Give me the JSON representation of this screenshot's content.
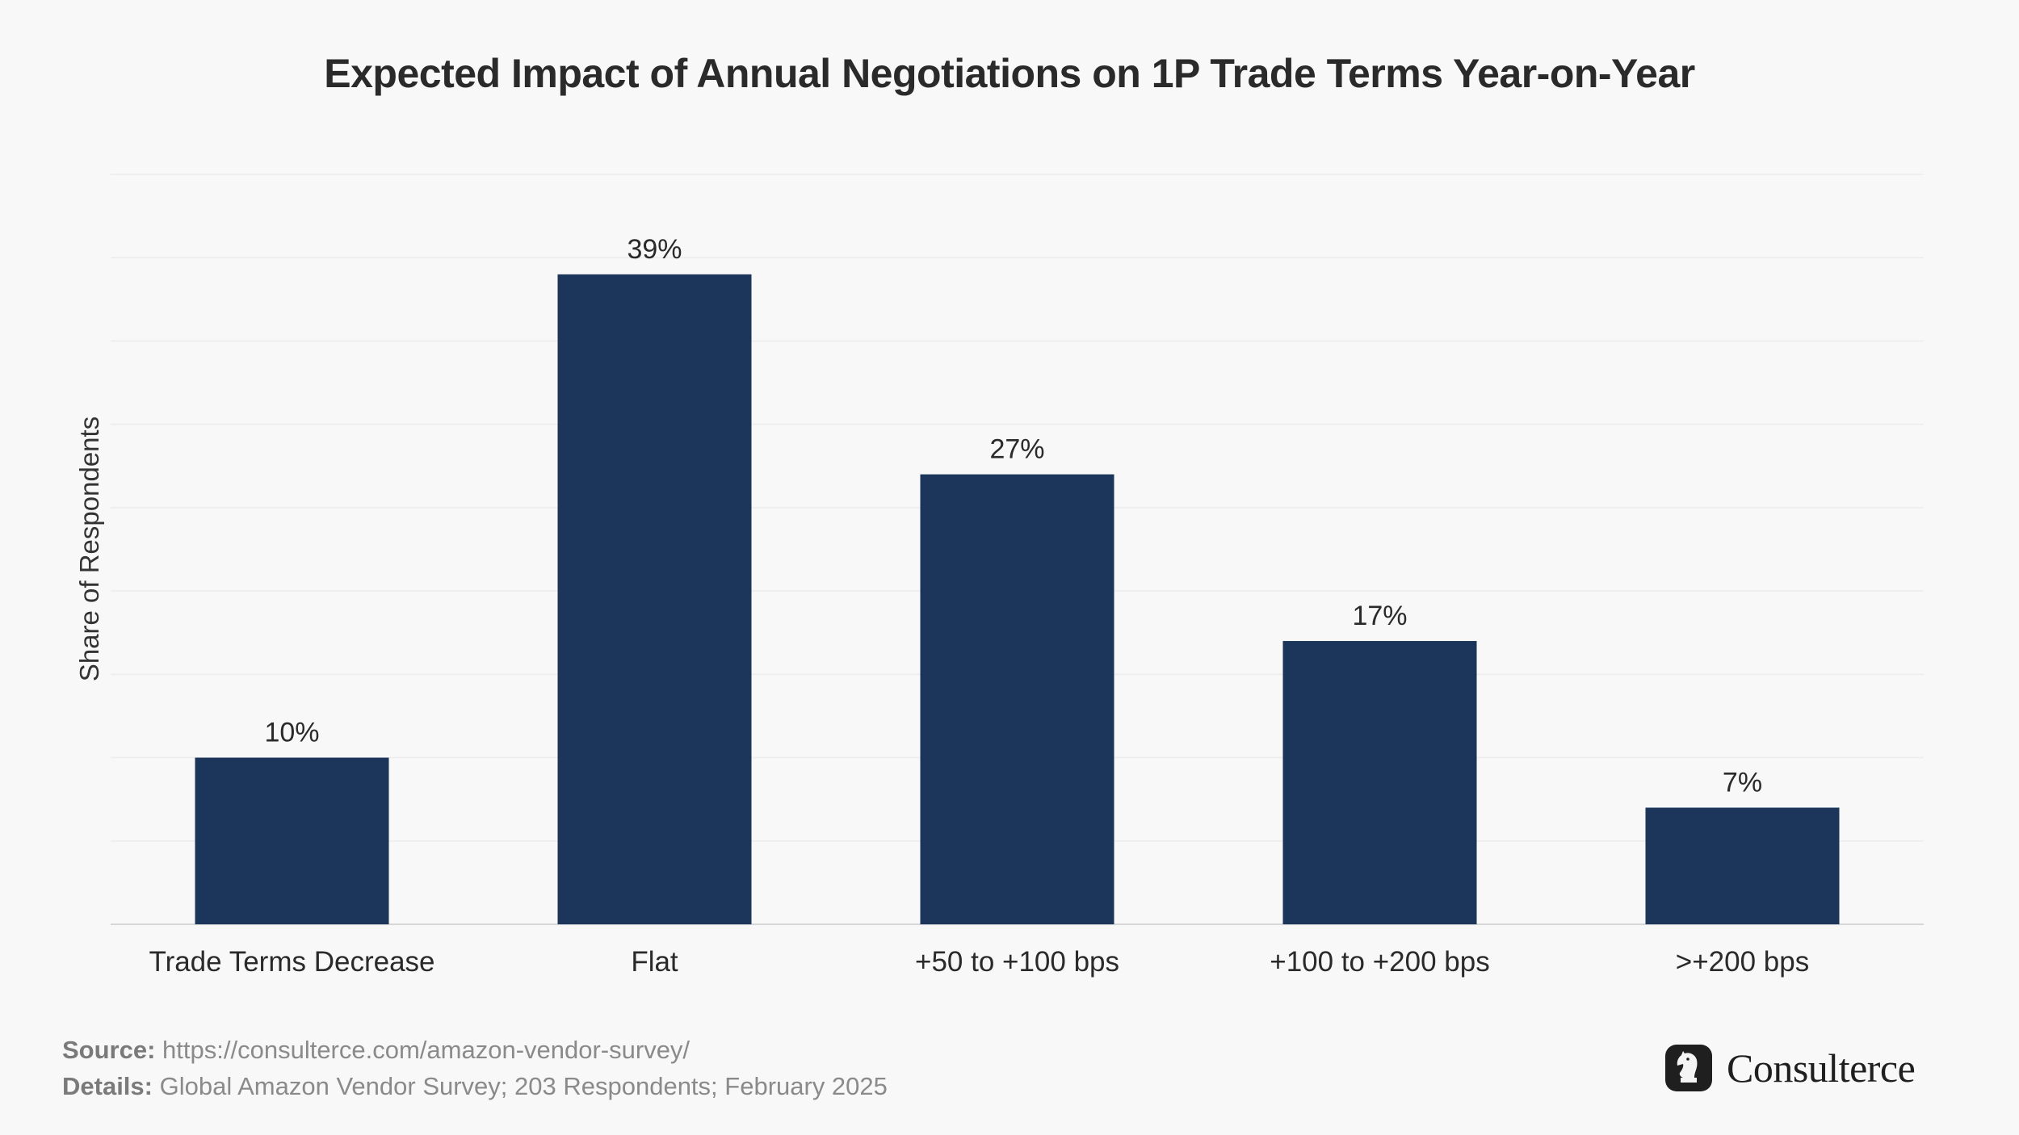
{
  "chart_data": {
    "type": "bar",
    "title": "Expected Impact of Annual Negotiations on 1P Trade Terms Year-on-Year",
    "xlabel": "",
    "ylabel": "Share of Respondents",
    "categories": [
      "Trade Terms Decrease",
      "Flat",
      "+50 to +100 bps",
      "+100 to +200 bps",
      ">+200 bps"
    ],
    "values": [
      10,
      39,
      27,
      17,
      7
    ],
    "value_labels": [
      "10%",
      "39%",
      "27%",
      "17%",
      "7%"
    ],
    "ylim": [
      0,
      45
    ],
    "grid": true,
    "bar_color": "#1b365a"
  },
  "footer": {
    "source_label": "Source:",
    "source_value": "https://consulterce.com/amazon-vendor-survey/",
    "details_label": "Details:",
    "details_value": "Global Amazon Vendor Survey; 203 Respondents; February 2025"
  },
  "brand": {
    "name": "Consulterce",
    "logo_icon": "knight-chess-icon"
  }
}
